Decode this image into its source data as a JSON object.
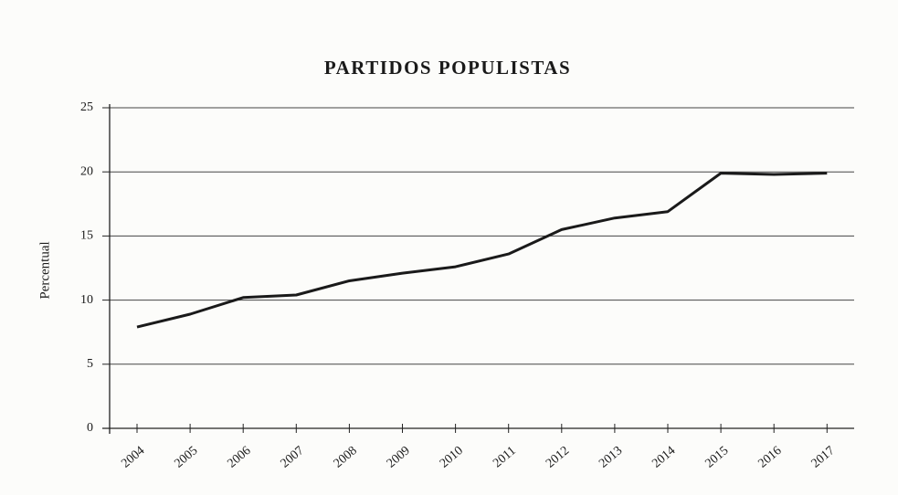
{
  "chart_data": {
    "type": "line",
    "title": "PARTIDOS POPULISTAS",
    "y_label": "Percentual",
    "categories": [
      "2004",
      "2005",
      "2006",
      "2007",
      "2008",
      "2009",
      "2010",
      "2011",
      "2012",
      "2013",
      "2014",
      "2015",
      "2016",
      "2017"
    ],
    "values": [
      7.9,
      8.9,
      10.2,
      10.4,
      11.5,
      12.1,
      12.6,
      13.6,
      15.5,
      16.4,
      16.9,
      19.9,
      19.8,
      19.9
    ],
    "color": "#1a1a1a",
    "ylim": [
      0,
      25
    ],
    "yticks": [
      0,
      5,
      10,
      15,
      20,
      25
    ],
    "grid": true
  }
}
